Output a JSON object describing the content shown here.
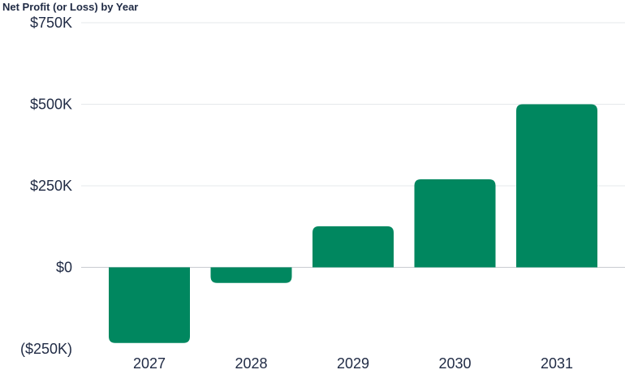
{
  "chart_data": {
    "type": "bar",
    "title": "Net Profit (or Loss) by Year",
    "categories": [
      "2027",
      "2028",
      "2029",
      "2030",
      "2031"
    ],
    "values": [
      -232000,
      -48000,
      126000,
      270000,
      500000
    ],
    "ylim": [
      -250000,
      750000
    ],
    "y_ticks": [
      {
        "value": 750000,
        "label": "$750K"
      },
      {
        "value": 500000,
        "label": "$500K"
      },
      {
        "value": 250000,
        "label": "$250K"
      },
      {
        "value": 0,
        "label": "$0"
      },
      {
        "value": -250000,
        "label": "($250K)"
      }
    ],
    "grid": true,
    "bar_color": "#00875f",
    "xlabel": "",
    "ylabel": ""
  }
}
